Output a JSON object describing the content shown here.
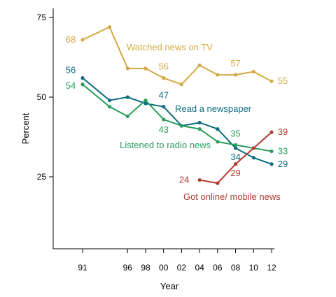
{
  "chart_data": {
    "type": "line",
    "xlabel": "Year",
    "ylabel": "Percent",
    "x_ticks": [
      "91",
      "96",
      "98",
      "00",
      "02",
      "04",
      "06",
      "08",
      "10",
      "12"
    ],
    "y_ticks": [
      "25",
      "50",
      "75"
    ],
    "xlim": [
      1988,
      2013
    ],
    "ylim": [
      0,
      80
    ],
    "grid": false,
    "series": [
      {
        "name": "Watched news on TV",
        "color": "#d4a843",
        "x": [
          1991,
          1994,
          1996,
          1998,
          2000,
          2002,
          2004,
          2006,
          2008,
          2010,
          2012
        ],
        "y": [
          68,
          72,
          59,
          59,
          56,
          54,
          60,
          57,
          57,
          58,
          55
        ],
        "labels": [
          {
            "i": 0,
            "text": "68"
          },
          {
            "i": 4,
            "text": "56"
          },
          {
            "i": 8,
            "text": "57"
          },
          {
            "i": 10,
            "text": "55"
          }
        ]
      },
      {
        "name": "Read a newspaper",
        "color": "#0e6b80",
        "x": [
          1991,
          1994,
          1996,
          1998,
          2000,
          2002,
          2004,
          2006,
          2008,
          2010,
          2012
        ],
        "y": [
          56,
          49,
          50,
          48,
          47,
          41,
          42,
          40,
          34,
          31,
          29
        ],
        "labels": [
          {
            "i": 0,
            "text": "56"
          },
          {
            "i": 4,
            "text": "47"
          },
          {
            "i": 8,
            "text": "34"
          },
          {
            "i": 10,
            "text": "29"
          }
        ]
      },
      {
        "name": "Listened to radio news",
        "color": "#2a9d5c",
        "x": [
          1991,
          1994,
          1996,
          1998,
          2000,
          2002,
          2004,
          2006,
          2008,
          2010,
          2012
        ],
        "y": [
          54,
          47,
          44,
          49,
          43,
          41,
          40,
          36,
          35,
          34,
          33
        ],
        "labels": [
          {
            "i": 0,
            "text": "54"
          },
          {
            "i": 4,
            "text": "43"
          },
          {
            "i": 8,
            "text": "35"
          },
          {
            "i": 10,
            "text": "33"
          }
        ]
      },
      {
        "name": "Got online/ mobile news",
        "color": "#b03a2e",
        "x": [
          2004,
          2006,
          2008,
          2010,
          2012
        ],
        "y": [
          24,
          23,
          29,
          34,
          39
        ],
        "labels": [
          {
            "i": 0,
            "text": "24"
          },
          {
            "i": 2,
            "text": "29"
          },
          {
            "i": 4,
            "text": "39"
          }
        ]
      }
    ]
  }
}
